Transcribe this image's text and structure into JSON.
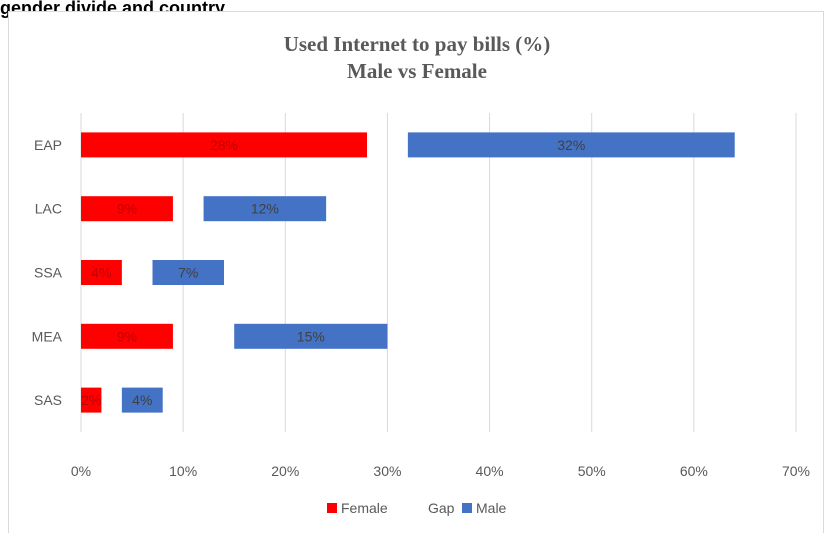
{
  "heading": "gender divide and country",
  "chart_data": {
    "type": "bar",
    "orientation": "horizontal",
    "stacked": true,
    "title": [
      "Used Internet to pay bills (%)",
      "Male vs Female"
    ],
    "categories": [
      "EAP",
      "LAC",
      "SSA",
      "MEA",
      "SAS"
    ],
    "series": [
      {
        "name": "Female",
        "values": [
          28,
          9,
          4,
          9,
          2
        ],
        "color": "#ff0000",
        "labels": [
          "28%",
          "9%",
          "4%",
          "9%",
          "2%"
        ],
        "label_color": "#c00000"
      },
      {
        "name": "Gap",
        "values": [
          4,
          3,
          3,
          6,
          2
        ],
        "color": "none"
      },
      {
        "name": "Male",
        "values": [
          32,
          12,
          7,
          15,
          4
        ],
        "color": "#4472c4",
        "labels": [
          "32%",
          "12%",
          "7%",
          "15%",
          "4%"
        ],
        "label_color": "#404040"
      }
    ],
    "xlim": [
      0,
      70
    ],
    "xticks": [
      "0%",
      "10%",
      "20%",
      "30%",
      "40%",
      "50%",
      "60%",
      "70%"
    ],
    "grid": true,
    "legend": "bottom"
  }
}
